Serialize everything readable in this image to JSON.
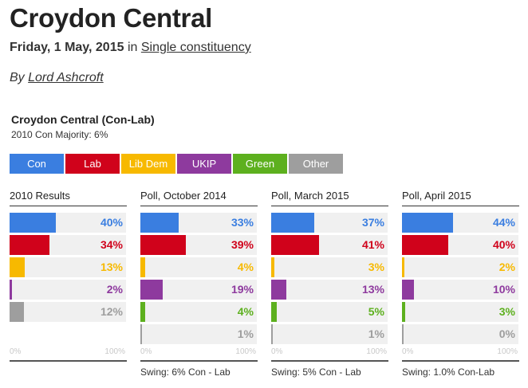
{
  "page": {
    "title": "Croydon Central",
    "date": "Friday, 1 May, 2015",
    "in_word": "in",
    "category": "Single constituency",
    "by_word": "By",
    "author": "Lord Ashcroft"
  },
  "chart_meta": {
    "title": "Croydon Central (Con-Lab)",
    "subtitle": "2010 Con Majority: 6%"
  },
  "legend": [
    {
      "label": "Con",
      "color": "#3a7ee0"
    },
    {
      "label": "Lab",
      "color": "#d0021b"
    },
    {
      "label": "Lib Dem",
      "color": "#f7b900"
    },
    {
      "label": "UKIP",
      "color": "#8e3a9e"
    },
    {
      "label": "Green",
      "color": "#5db01e"
    },
    {
      "label": "Other",
      "color": "#9e9e9e"
    }
  ],
  "axis": {
    "min_label": "0%",
    "max_label": "100%"
  },
  "chart_data": [
    {
      "type": "bar",
      "title": "2010 Results",
      "categories": [
        "Con",
        "Lab",
        "Lib Dem",
        "UKIP",
        "Other"
      ],
      "values": [
        40,
        34,
        13,
        2,
        12
      ],
      "value_labels": [
        "40%",
        "34%",
        "13%",
        "2%",
        "12%"
      ],
      "colors": [
        "#3a7ee0",
        "#d0021b",
        "#f7b900",
        "#8e3a9e",
        "#9e9e9e"
      ],
      "xlim": [
        0,
        100
      ],
      "footer": ""
    },
    {
      "type": "bar",
      "title": "Poll, October 2014",
      "categories": [
        "Con",
        "Lab",
        "Lib Dem",
        "UKIP",
        "Green",
        "Other"
      ],
      "values": [
        33,
        39,
        4,
        19,
        4,
        1
      ],
      "value_labels": [
        "33%",
        "39%",
        "4%",
        "19%",
        "4%",
        "1%"
      ],
      "colors": [
        "#3a7ee0",
        "#d0021b",
        "#f7b900",
        "#8e3a9e",
        "#5db01e",
        "#9e9e9e"
      ],
      "xlim": [
        0,
        100
      ],
      "footer": "Swing: 6% Con - Lab"
    },
    {
      "type": "bar",
      "title": "Poll, March 2015",
      "categories": [
        "Con",
        "Lab",
        "Lib Dem",
        "UKIP",
        "Green",
        "Other"
      ],
      "values": [
        37,
        41,
        3,
        13,
        5,
        1
      ],
      "value_labels": [
        "37%",
        "41%",
        "3%",
        "13%",
        "5%",
        "1%"
      ],
      "colors": [
        "#3a7ee0",
        "#d0021b",
        "#f7b900",
        "#8e3a9e",
        "#5db01e",
        "#9e9e9e"
      ],
      "xlim": [
        0,
        100
      ],
      "footer": "Swing: 5% Con - Lab"
    },
    {
      "type": "bar",
      "title": "Poll, April 2015",
      "categories": [
        "Con",
        "Lab",
        "Lib Dem",
        "UKIP",
        "Green",
        "Other"
      ],
      "values": [
        44,
        40,
        2,
        10,
        3,
        0
      ],
      "value_labels": [
        "44%",
        "40%",
        "2%",
        "10%",
        "3%",
        "0%"
      ],
      "colors": [
        "#3a7ee0",
        "#d0021b",
        "#f7b900",
        "#8e3a9e",
        "#5db01e",
        "#9e9e9e"
      ],
      "xlim": [
        0,
        100
      ],
      "footer": "Swing: 1.0% Con-Lab"
    }
  ]
}
